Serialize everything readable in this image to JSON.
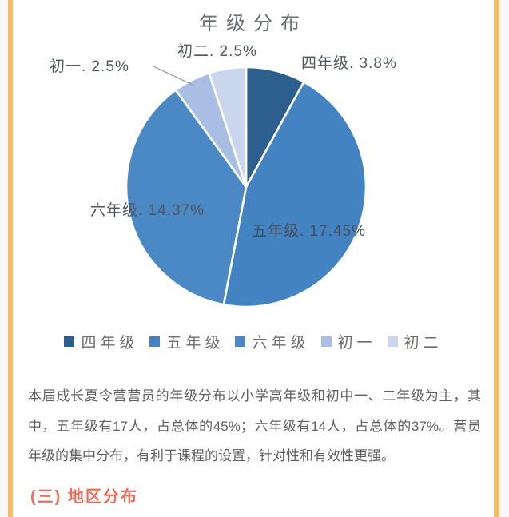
{
  "page": {
    "background": "#f7f7f7",
    "card_background": "#ffffff",
    "accent_bar_color": "#f4bd62"
  },
  "chart_data": {
    "type": "pie",
    "title": "年级分布",
    "legend_position": "bottom",
    "start_angle_deg": 0,
    "direction": "clockwise",
    "slice_separator_color": "#ffffff",
    "series": [
      {
        "name": "四年级",
        "share_percent": 8,
        "label": "四年级. 3.8%",
        "color": "#2d5f8e"
      },
      {
        "name": "五年级",
        "share_percent": 45,
        "label": "五年级. 17.45%",
        "color": "#4383c2"
      },
      {
        "name": "六年级",
        "share_percent": 37,
        "label": "六年级. 14.37%",
        "color": "#4a89c4"
      },
      {
        "name": "初一",
        "share_percent": 5,
        "label": "初一. 2.5%",
        "color": "#a8bee2"
      },
      {
        "name": "初二",
        "share_percent": 5,
        "label": "初二. 2.5%",
        "color": "#c9d6ee"
      }
    ]
  },
  "paragraph": {
    "full_text": "本届成长夏令营营员的年级分布以小学高年级和初中一、二年级为主，其中，五年级有17人，占总体的45%；六年级有14人，占总体的37%。营员年级的集中分布，有利于课程的设置，针对性和有效性更强。",
    "lines": [
      "本届成长夏令营营员的年级分布以小学高年级和初中一、二年级为主，其",
      "中，五年级有17人，占总体的45%；六年级有14人，占总体的37%。营员",
      "年级的集中分布，有利于课程的设置，针对性和有效性更强。"
    ],
    "text_color": "#5f5f5f"
  },
  "section_heading": {
    "text": "(三) 地区分布",
    "color": "#ef6e5b"
  }
}
